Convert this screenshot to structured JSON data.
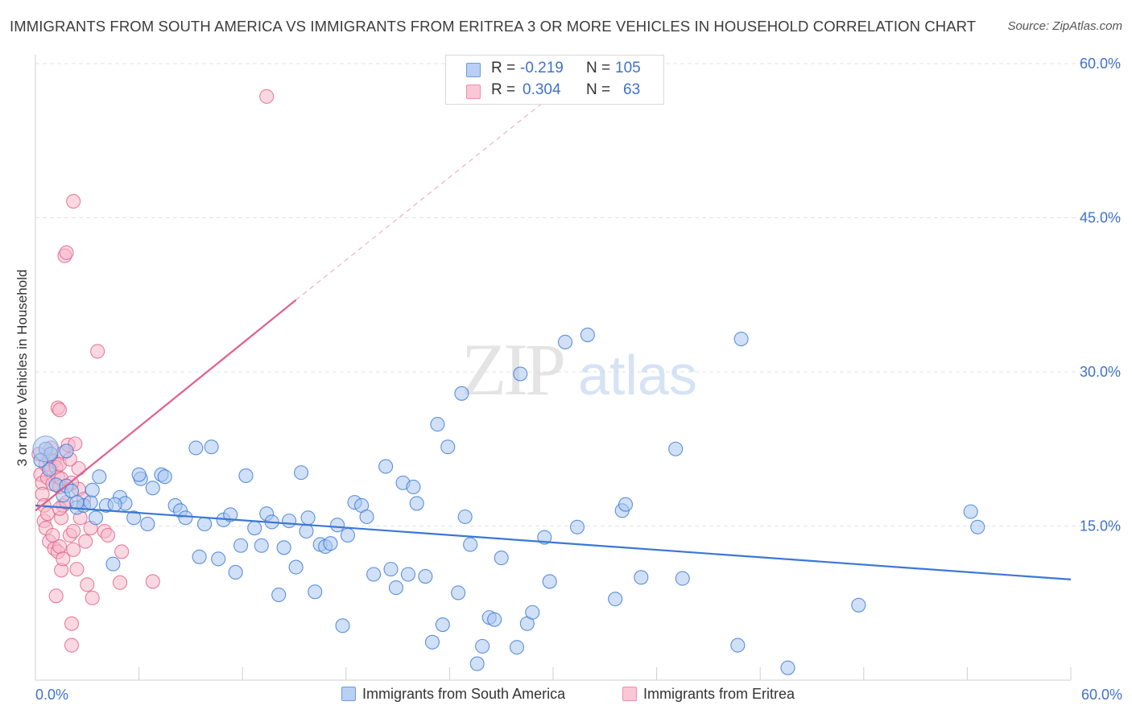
{
  "title": "IMMIGRANTS FROM SOUTH AMERICA VS IMMIGRANTS FROM ERITREA 3 OR MORE VEHICLES IN HOUSEHOLD CORRELATION CHART",
  "source": "Source: ZipAtlas.com",
  "watermark": {
    "zip": "ZIP",
    "atlas": "atlas"
  },
  "colors": {
    "blue": "#3a78d4",
    "blue_fill": "#a9c7ef",
    "pink": "#e0608a",
    "pink_fill": "#f5b8cb",
    "tick_label": "#3f72c9",
    "grid": "#e3e3e3"
  },
  "legend": {
    "rows": [
      {
        "r_label": "R =",
        "r_value": "-0.219",
        "n_label": "N =",
        "n_value": "105"
      },
      {
        "r_label": "R =",
        "r_value": "0.304",
        "n_label": "N =",
        "n_value": "63"
      }
    ]
  },
  "chart_data": {
    "type": "scatter",
    "title": "IMMIGRANTS FROM SOUTH AMERICA VS IMMIGRANTS FROM ERITREA 3 OR MORE VEHICLES IN HOUSEHOLD CORRELATION CHART",
    "xlabel": "",
    "ylabel": "3 or more Vehicles in Household",
    "xlim": [
      0,
      60
    ],
    "ylim": [
      0,
      60
    ],
    "x_tick_labels": {
      "min": "0.0%",
      "max": "60.0%"
    },
    "y_ticks": [
      {
        "value": 15,
        "label": "15.0%"
      },
      {
        "value": 30,
        "label": "30.0%"
      },
      {
        "value": 45,
        "label": "45.0%"
      },
      {
        "value": 60,
        "label": "60.0%"
      }
    ],
    "grid": true,
    "legend_position": "bottom",
    "series": [
      {
        "name": "Immigrants from South America",
        "color": "#3a78d4",
        "R": -0.219,
        "N": 105,
        "trend": {
          "x0": 0,
          "y0": 17.0,
          "x1": 60,
          "y1": 9.8
        },
        "points": [
          [
            0.6,
            22.5
          ],
          [
            0.8,
            20.5
          ],
          [
            0.9,
            22.0
          ],
          [
            1.2,
            19.0
          ],
          [
            1.6,
            18.0
          ],
          [
            1.8,
            18.9
          ],
          [
            2.1,
            18.4
          ],
          [
            2.4,
            16.8
          ],
          [
            2.8,
            17.0
          ],
          [
            3.2,
            17.3
          ],
          [
            3.5,
            15.8
          ],
          [
            3.7,
            19.8
          ],
          [
            4.1,
            17.0
          ],
          [
            4.5,
            11.3
          ],
          [
            4.9,
            17.8
          ],
          [
            5.2,
            17.2
          ],
          [
            5.7,
            15.8
          ],
          [
            6.1,
            19.6
          ],
          [
            6.5,
            15.2
          ],
          [
            6.8,
            18.7
          ],
          [
            7.3,
            20.0
          ],
          [
            7.5,
            19.8
          ],
          [
            8.1,
            17.0
          ],
          [
            8.4,
            16.5
          ],
          [
            8.7,
            15.8
          ],
          [
            9.3,
            22.6
          ],
          [
            9.5,
            12.0
          ],
          [
            9.8,
            15.2
          ],
          [
            10.2,
            22.7
          ],
          [
            10.6,
            11.8
          ],
          [
            10.9,
            15.6
          ],
          [
            11.3,
            16.1
          ],
          [
            11.6,
            10.5
          ],
          [
            11.9,
            13.1
          ],
          [
            12.2,
            19.9
          ],
          [
            12.7,
            14.8
          ],
          [
            13.1,
            13.1
          ],
          [
            13.4,
            16.2
          ],
          [
            13.7,
            15.4
          ],
          [
            14.1,
            8.3
          ],
          [
            14.4,
            12.9
          ],
          [
            14.7,
            15.5
          ],
          [
            15.1,
            11.0
          ],
          [
            15.4,
            20.2
          ],
          [
            15.7,
            14.5
          ],
          [
            15.8,
            15.8
          ],
          [
            16.2,
            8.6
          ],
          [
            16.5,
            13.2
          ],
          [
            16.8,
            13.0
          ],
          [
            17.1,
            13.3
          ],
          [
            17.5,
            15.1
          ],
          [
            17.8,
            5.3
          ],
          [
            18.1,
            14.1
          ],
          [
            18.5,
            17.3
          ],
          [
            18.9,
            17.0
          ],
          [
            19.2,
            15.9
          ],
          [
            19.6,
            10.3
          ],
          [
            20.3,
            20.8
          ],
          [
            20.6,
            10.8
          ],
          [
            20.9,
            9.0
          ],
          [
            21.3,
            19.2
          ],
          [
            21.6,
            10.3
          ],
          [
            21.9,
            18.8
          ],
          [
            22.1,
            17.2
          ],
          [
            22.6,
            10.1
          ],
          [
            23.0,
            3.7
          ],
          [
            23.3,
            24.9
          ],
          [
            23.6,
            5.4
          ],
          [
            23.9,
            22.7
          ],
          [
            24.5,
            8.5
          ],
          [
            24.7,
            27.9
          ],
          [
            24.9,
            15.9
          ],
          [
            25.2,
            13.2
          ],
          [
            25.6,
            1.6
          ],
          [
            25.9,
            3.3
          ],
          [
            26.3,
            6.1
          ],
          [
            26.6,
            5.9
          ],
          [
            27.0,
            11.9
          ],
          [
            27.9,
            3.2
          ],
          [
            28.1,
            29.8
          ],
          [
            28.5,
            5.5
          ],
          [
            28.8,
            6.6
          ],
          [
            29.5,
            13.9
          ],
          [
            29.8,
            9.6
          ],
          [
            30.7,
            32.9
          ],
          [
            31.4,
            14.9
          ],
          [
            32.0,
            33.6
          ],
          [
            33.6,
            7.9
          ],
          [
            34.0,
            16.5
          ],
          [
            34.2,
            17.1
          ],
          [
            35.1,
            10.0
          ],
          [
            37.1,
            22.5
          ],
          [
            37.5,
            9.9
          ],
          [
            40.7,
            3.4
          ],
          [
            40.9,
            33.2
          ],
          [
            43.6,
            1.2
          ],
          [
            47.7,
            7.3
          ],
          [
            54.2,
            16.4
          ],
          [
            54.6,
            14.9
          ],
          [
            1.8,
            22.3
          ],
          [
            0.3,
            21.4
          ],
          [
            2.4,
            17.3
          ],
          [
            4.6,
            17.1
          ],
          [
            6.0,
            20.0
          ],
          [
            3.3,
            18.5
          ]
        ]
      },
      {
        "name": "Immigrants from Eritrea",
        "color": "#e0608a",
        "R": 0.304,
        "N": 63,
        "trend": {
          "x0": 0,
          "y0": 16.5,
          "x1": 15.1,
          "y1": 37.0,
          "dashed_to": [
            30.0,
            57.0
          ]
        },
        "points": [
          [
            0.2,
            22.0
          ],
          [
            0.3,
            20.0
          ],
          [
            0.4,
            19.2
          ],
          [
            0.4,
            18.1
          ],
          [
            0.5,
            17.0
          ],
          [
            0.5,
            15.5
          ],
          [
            0.6,
            14.8
          ],
          [
            0.6,
            21.0
          ],
          [
            0.7,
            19.7
          ],
          [
            0.7,
            16.2
          ],
          [
            0.8,
            21.5
          ],
          [
            0.8,
            13.5
          ],
          [
            0.9,
            22.6
          ],
          [
            0.9,
            20.6
          ],
          [
            1.0,
            19.1
          ],
          [
            1.0,
            14.1
          ],
          [
            1.1,
            21.3
          ],
          [
            1.1,
            12.8
          ],
          [
            1.2,
            20.7
          ],
          [
            1.2,
            8.2
          ],
          [
            1.3,
            26.5
          ],
          [
            1.3,
            19.8
          ],
          [
            1.3,
            12.5
          ],
          [
            1.4,
            26.3
          ],
          [
            1.4,
            18.8
          ],
          [
            1.4,
            13.0
          ],
          [
            1.5,
            15.8
          ],
          [
            1.5,
            10.7
          ],
          [
            1.6,
            22.1
          ],
          [
            1.6,
            11.8
          ],
          [
            1.6,
            17.0
          ],
          [
            1.4,
            21.0
          ],
          [
            1.5,
            19.6
          ],
          [
            1.4,
            16.7
          ],
          [
            1.7,
            41.3
          ],
          [
            1.8,
            41.6
          ],
          [
            1.9,
            22.9
          ],
          [
            2.0,
            14.1
          ],
          [
            2.1,
            3.4
          ],
          [
            2.1,
            5.5
          ],
          [
            2.2,
            12.7
          ],
          [
            2.2,
            46.6
          ],
          [
            2.3,
            23.0
          ],
          [
            2.4,
            10.8
          ],
          [
            2.5,
            18.6
          ],
          [
            2.6,
            15.8
          ],
          [
            2.8,
            17.6
          ],
          [
            2.9,
            13.5
          ],
          [
            3.0,
            9.3
          ],
          [
            3.2,
            14.8
          ],
          [
            3.3,
            8.0
          ],
          [
            3.6,
            32.0
          ],
          [
            4.0,
            14.5
          ],
          [
            4.2,
            14.1
          ],
          [
            4.9,
            9.5
          ],
          [
            5.0,
            12.5
          ],
          [
            6.8,
            9.6
          ],
          [
            13.4,
            56.8
          ],
          [
            2.5,
            20.6
          ],
          [
            2.0,
            21.5
          ],
          [
            1.8,
            17.3
          ],
          [
            2.1,
            19.2
          ],
          [
            2.2,
            14.5
          ]
        ]
      }
    ]
  }
}
